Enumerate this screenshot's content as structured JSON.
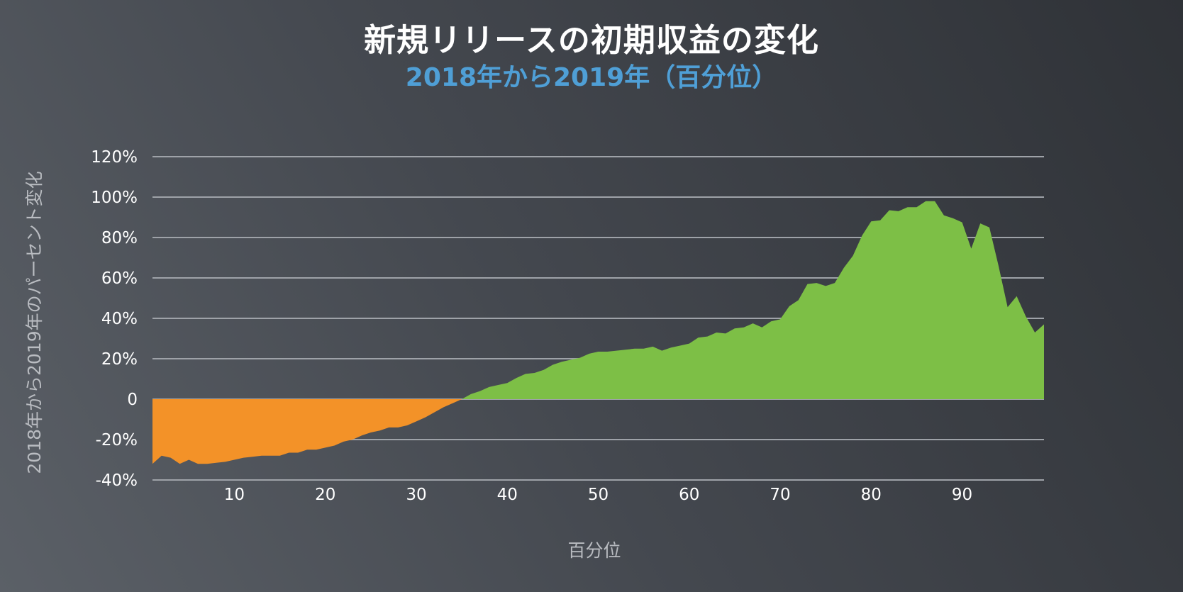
{
  "title": "新規リリースの初期収益の変化",
  "subtitle": "2018年から2019年（百分位）",
  "chart_data": {
    "type": "area",
    "xlabel": "百分位",
    "ylabel": "2018年から2019年のパーセント変化",
    "xlim": [
      1,
      99
    ],
    "ylim": [
      -40,
      120
    ],
    "grid": true,
    "legend": "none",
    "x_ticks": [
      {
        "value": 10,
        "label": "10"
      },
      {
        "value": 20,
        "label": "20"
      },
      {
        "value": 30,
        "label": "30"
      },
      {
        "value": 40,
        "label": "40"
      },
      {
        "value": 50,
        "label": "50"
      },
      {
        "value": 60,
        "label": "60"
      },
      {
        "value": 70,
        "label": "70"
      },
      {
        "value": 80,
        "label": "80"
      },
      {
        "value": 90,
        "label": "90"
      }
    ],
    "y_ticks": [
      {
        "value": 120,
        "label": "120%"
      },
      {
        "value": 100,
        "label": "100%"
      },
      {
        "value": 80,
        "label": "80%"
      },
      {
        "value": 60,
        "label": "60%"
      },
      {
        "value": 40,
        "label": "40%"
      },
      {
        "value": 20,
        "label": "20%"
      },
      {
        "value": 0,
        "label": "0"
      },
      {
        "value": -20,
        "label": "-20%"
      },
      {
        "value": -40,
        "label": "-40%"
      }
    ],
    "colors": {
      "negative": "#f39228",
      "positive": "#7dbf46",
      "grid": "#9ea2a8"
    },
    "x": [
      1,
      2,
      3,
      4,
      5,
      6,
      7,
      8,
      9,
      10,
      11,
      12,
      13,
      14,
      15,
      16,
      17,
      18,
      19,
      20,
      21,
      22,
      23,
      24,
      25,
      26,
      27,
      28,
      29,
      30,
      31,
      32,
      33,
      34,
      35,
      36,
      37,
      38,
      39,
      40,
      41,
      42,
      43,
      44,
      45,
      46,
      47,
      48,
      49,
      50,
      51,
      52,
      53,
      54,
      55,
      56,
      57,
      58,
      59,
      60,
      61,
      62,
      63,
      64,
      65,
      66,
      67,
      68,
      69,
      70,
      71,
      72,
      73,
      74,
      75,
      76,
      77,
      78,
      79,
      80,
      81,
      82,
      83,
      84,
      85,
      86,
      87,
      88,
      89,
      90,
      91,
      92,
      93,
      94,
      95,
      96,
      97,
      98,
      99
    ],
    "values": [
      -32,
      -28,
      -29,
      -32,
      -30,
      -32,
      -32,
      -31.5,
      -31,
      -30,
      -29,
      -28.5,
      -28,
      -28,
      -28,
      -26.5,
      -26.5,
      -25,
      -25,
      -24,
      -23,
      -21,
      -20,
      -18,
      -16.5,
      -15.5,
      -14,
      -14,
      -13,
      -11,
      -9,
      -6.5,
      -4,
      -2,
      0,
      2.5,
      4,
      6,
      7,
      8,
      10.5,
      12.5,
      13,
      14.5,
      17,
      18.5,
      19.5,
      20.5,
      22.5,
      23.5,
      23.5,
      24,
      24.5,
      25,
      25,
      26,
      24,
      25.5,
      26.5,
      27.5,
      30.5,
      31,
      33,
      32.5,
      35,
      35.5,
      37.5,
      35.5,
      38.5,
      39.5,
      46,
      49,
      57,
      57.5,
      56,
      57.5,
      65,
      71,
      81,
      88,
      88.5,
      93.5,
      93,
      95,
      95,
      98,
      98,
      91,
      89.5,
      87.5,
      74.5,
      87,
      85,
      66,
      45.5,
      51,
      41,
      33,
      37
    ]
  }
}
